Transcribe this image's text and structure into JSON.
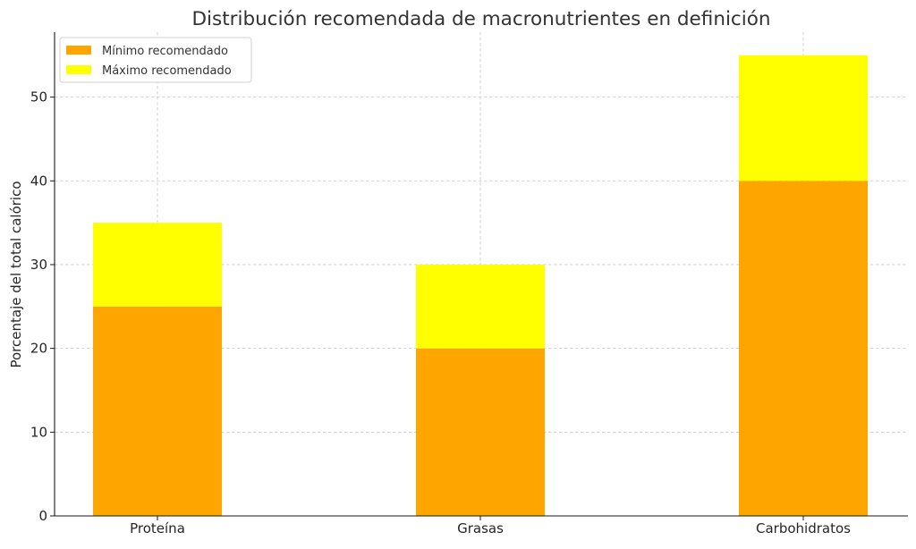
{
  "chart_data": {
    "type": "bar",
    "stacked": true,
    "title": "Distribución recomendada de macronutrientes en definición",
    "xlabel": "",
    "ylabel": "Porcentaje del total calórico",
    "categories": [
      "Proteína",
      "Grasas",
      "Carbohidratos"
    ],
    "series": [
      {
        "name": "Mínimo recomendado",
        "color": "#FFA500",
        "values": [
          25,
          20,
          40
        ]
      },
      {
        "name": "Máximo recomendado",
        "color": "#FFFF00",
        "values": [
          10,
          10,
          15
        ]
      }
    ],
    "ylim": [
      0,
      57.75
    ],
    "yticks": [
      0,
      10,
      20,
      30,
      40,
      50
    ],
    "grid": true,
    "legend_position": "top-left"
  }
}
